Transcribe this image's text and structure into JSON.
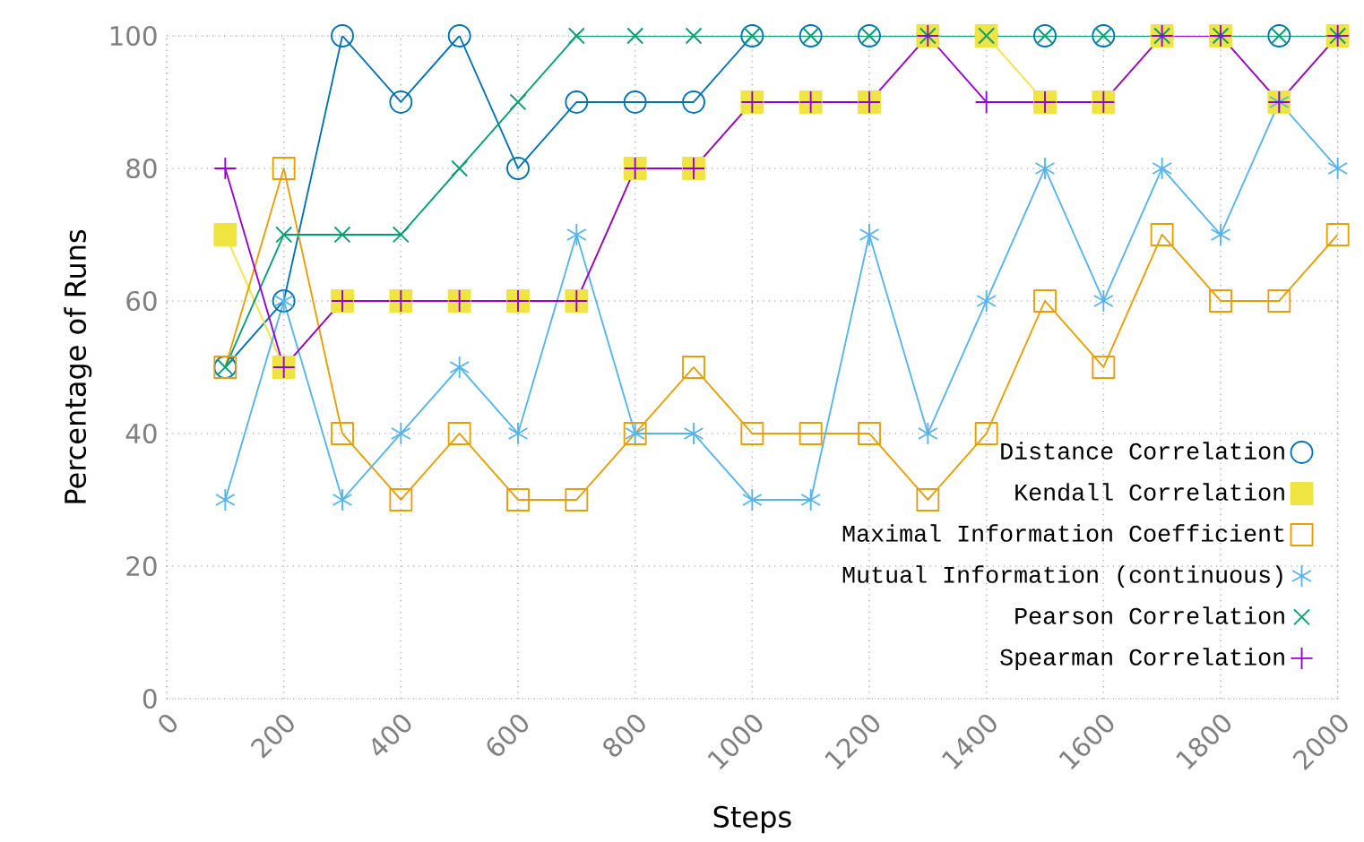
{
  "chart_data": {
    "type": "line",
    "xlabel": "Steps",
    "ylabel": "Percentage of Runs",
    "x": [
      100,
      200,
      300,
      400,
      500,
      600,
      700,
      800,
      900,
      1000,
      1100,
      1200,
      1300,
      1400,
      1500,
      1600,
      1700,
      1800,
      1900,
      2000
    ],
    "series": [
      {
        "name": "Distance Correlation",
        "color": "#0072b2",
        "marker": "circle",
        "values": [
          50,
          60,
          100,
          90,
          100,
          80,
          90,
          90,
          90,
          100,
          100,
          100,
          100,
          100,
          100,
          100,
          100,
          100,
          100,
          100
        ]
      },
      {
        "name": "Kendall Correlation",
        "color": "#f0e442",
        "marker": "square",
        "values": [
          70,
          50,
          60,
          60,
          60,
          60,
          60,
          80,
          80,
          90,
          90,
          90,
          100,
          100,
          90,
          90,
          100,
          100,
          90,
          100
        ]
      },
      {
        "name": "Maximal Information Coefficient",
        "color": "#e69f00",
        "marker": "square",
        "values": [
          50,
          80,
          40,
          30,
          40,
          30,
          30,
          40,
          50,
          40,
          40,
          40,
          30,
          40,
          60,
          50,
          70,
          60,
          60,
          70
        ]
      },
      {
        "name": "Mutual Information (continuous)",
        "color": "#56b4e9",
        "marker": "cross",
        "values": [
          30,
          60,
          30,
          40,
          50,
          40,
          70,
          40,
          40,
          30,
          30,
          70,
          40,
          60,
          80,
          60,
          80,
          70,
          90,
          80
        ]
      },
      {
        "name": "Pearson Correlation",
        "color": "#009e73",
        "marker": "cross",
        "values": [
          50,
          70,
          70,
          70,
          80,
          90,
          100,
          100,
          100,
          100,
          100,
          100,
          100,
          100,
          100,
          100,
          100,
          100,
          100,
          100
        ]
      },
      {
        "name": "Spearman Correlation",
        "color": "#9400d3",
        "marker": "plus",
        "values": [
          80,
          50,
          60,
          60,
          60,
          60,
          60,
          80,
          80,
          90,
          90,
          90,
          100,
          90,
          90,
          90,
          100,
          100,
          90,
          100
        ]
      }
    ],
    "xlim": [
      0,
      2000
    ],
    "xticks": [
      0,
      200,
      400,
      600,
      800,
      1000,
      1200,
      1400,
      1600,
      1800,
      2000
    ],
    "ylim": [
      0,
      100
    ],
    "yticks": [
      0,
      20,
      40,
      60,
      80,
      100
    ],
    "grid": true,
    "legend": "bottom right",
    "line_style": "solid"
  }
}
